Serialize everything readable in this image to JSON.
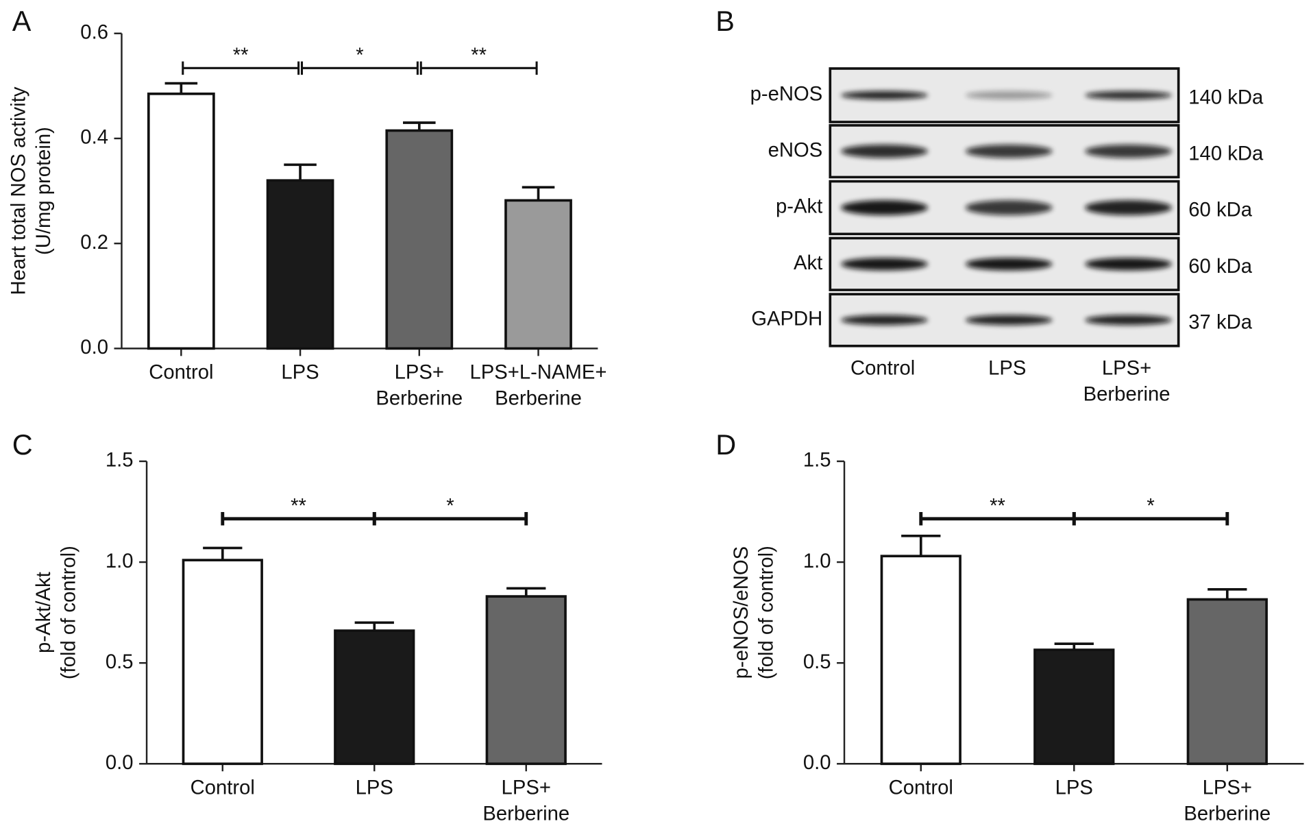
{
  "chart_data": [
    {
      "type": "bar",
      "panel": "A",
      "ylabel": [
        "Heart total NOS activity",
        "(U/mg protein)"
      ],
      "categories": [
        [
          "Control"
        ],
        [
          "LPS"
        ],
        [
          "LPS+",
          "Berberine"
        ],
        [
          "LPS+L-NAME+",
          "Berberine"
        ]
      ],
      "values": [
        0.485,
        0.32,
        0.415,
        0.282
      ],
      "errors": [
        0.02,
        0.03,
        0.015,
        0.025
      ],
      "colors": [
        "#ffffff",
        "#1a1a1a",
        "#666666",
        "#9a9a9a"
      ],
      "ylim": [
        0,
        0.6
      ],
      "yticks": [
        {
          "value": 0,
          "label": "0.0"
        },
        0.2,
        0.4,
        0.6
      ],
      "annotations": [
        "**",
        "*",
        "**"
      ]
    },
    {
      "type": "bar",
      "panel": "C",
      "ylabel": [
        "p-Akt/Akt",
        "(fold of control)"
      ],
      "categories": [
        [
          "Control"
        ],
        [
          "LPS"
        ],
        [
          "LPS+",
          "Berberine"
        ]
      ],
      "values": [
        1.01,
        0.66,
        0.83
      ],
      "errors": [
        0.06,
        0.04,
        0.04
      ],
      "colors": [
        "#ffffff",
        "#1a1a1a",
        "#666666"
      ],
      "ylim": [
        0,
        1.5
      ],
      "yticks": [
        {
          "value": 0,
          "label": "0.0"
        },
        0.5,
        {
          "value": 1,
          "label": "1.0"
        },
        1.5
      ],
      "annotations": [
        "**",
        "*"
      ]
    },
    {
      "type": "bar",
      "panel": "D",
      "ylabel": [
        "p-eNOS/eNOS",
        "(fold of control)"
      ],
      "categories": [
        [
          "Control"
        ],
        [
          "LPS"
        ],
        [
          "LPS+",
          "Berberine"
        ]
      ],
      "values": [
        1.03,
        0.565,
        0.815
      ],
      "errors": [
        0.1,
        0.03,
        0.05
      ],
      "colors": [
        "#ffffff",
        "#1a1a1a",
        "#666666"
      ],
      "ylim": [
        0,
        1.5
      ],
      "yticks": [
        {
          "value": 0,
          "label": "0.0"
        },
        0.5,
        {
          "value": 1,
          "label": "1.0"
        },
        1.5
      ],
      "annotations": [
        "**",
        "*"
      ]
    }
  ],
  "blot": {
    "panel": "B",
    "rows": [
      {
        "label": "p-eNOS",
        "size": "140 kDa"
      },
      {
        "label": "eNOS",
        "size": "140 kDa"
      },
      {
        "label": "p-Akt",
        "size": "60 kDa"
      },
      {
        "label": "Akt",
        "size": "60 kDa"
      },
      {
        "label": "GAPDH",
        "size": "37 kDa"
      }
    ],
    "columns": [
      [
        "Control"
      ],
      [
        "LPS"
      ],
      [
        "LPS+",
        "Berberine"
      ]
    ]
  }
}
